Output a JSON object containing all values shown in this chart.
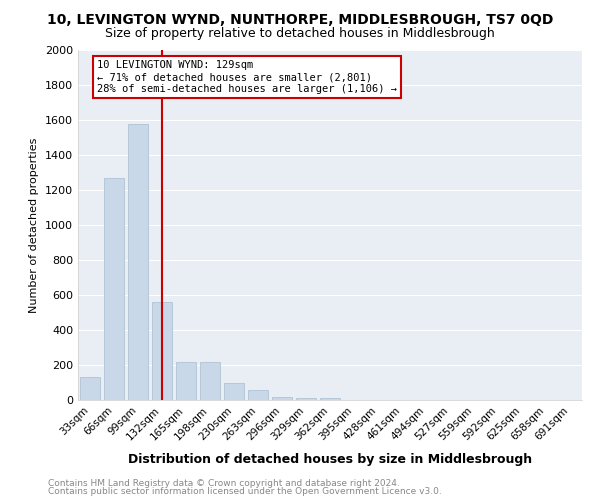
{
  "title": "10, LEVINGTON WYND, NUNTHORPE, MIDDLESBROUGH, TS7 0QD",
  "subtitle": "Size of property relative to detached houses in Middlesbrough",
  "xlabel": "Distribution of detached houses by size in Middlesbrough",
  "ylabel": "Number of detached properties",
  "footnote1": "Contains HM Land Registry data © Crown copyright and database right 2024.",
  "footnote2": "Contains public sector information licensed under the Open Government Licence v3.0.",
  "bins": [
    "33sqm",
    "66sqm",
    "99sqm",
    "132sqm",
    "165sqm",
    "198sqm",
    "230sqm",
    "263sqm",
    "296sqm",
    "329sqm",
    "362sqm",
    "395sqm",
    "428sqm",
    "461sqm",
    "494sqm",
    "527sqm",
    "559sqm",
    "592sqm",
    "625sqm",
    "658sqm",
    "691sqm"
  ],
  "values": [
    130,
    1270,
    1580,
    560,
    220,
    220,
    100,
    55,
    20,
    10,
    10,
    0,
    0,
    0,
    0,
    0,
    0,
    0,
    0,
    0,
    0
  ],
  "bar_color": "#c8d8e8",
  "bar_edge_color": "#a8bccf",
  "vline_x_index": 3,
  "vline_color": "#cc0000",
  "annotation_text": "10 LEVINGTON WYND: 129sqm\n← 71% of detached houses are smaller (2,801)\n28% of semi-detached houses are larger (1,106) →",
  "annotation_box_color": "white",
  "annotation_box_edge": "#cc0000",
  "ylim": [
    0,
    2000
  ],
  "yticks": [
    0,
    200,
    400,
    600,
    800,
    1000,
    1200,
    1400,
    1600,
    1800,
    2000
  ],
  "bg_color": "#e8eef4",
  "grid_color": "#ffffff",
  "title_fontsize": 10,
  "subtitle_fontsize": 9,
  "footnote_fontsize": 6.5
}
